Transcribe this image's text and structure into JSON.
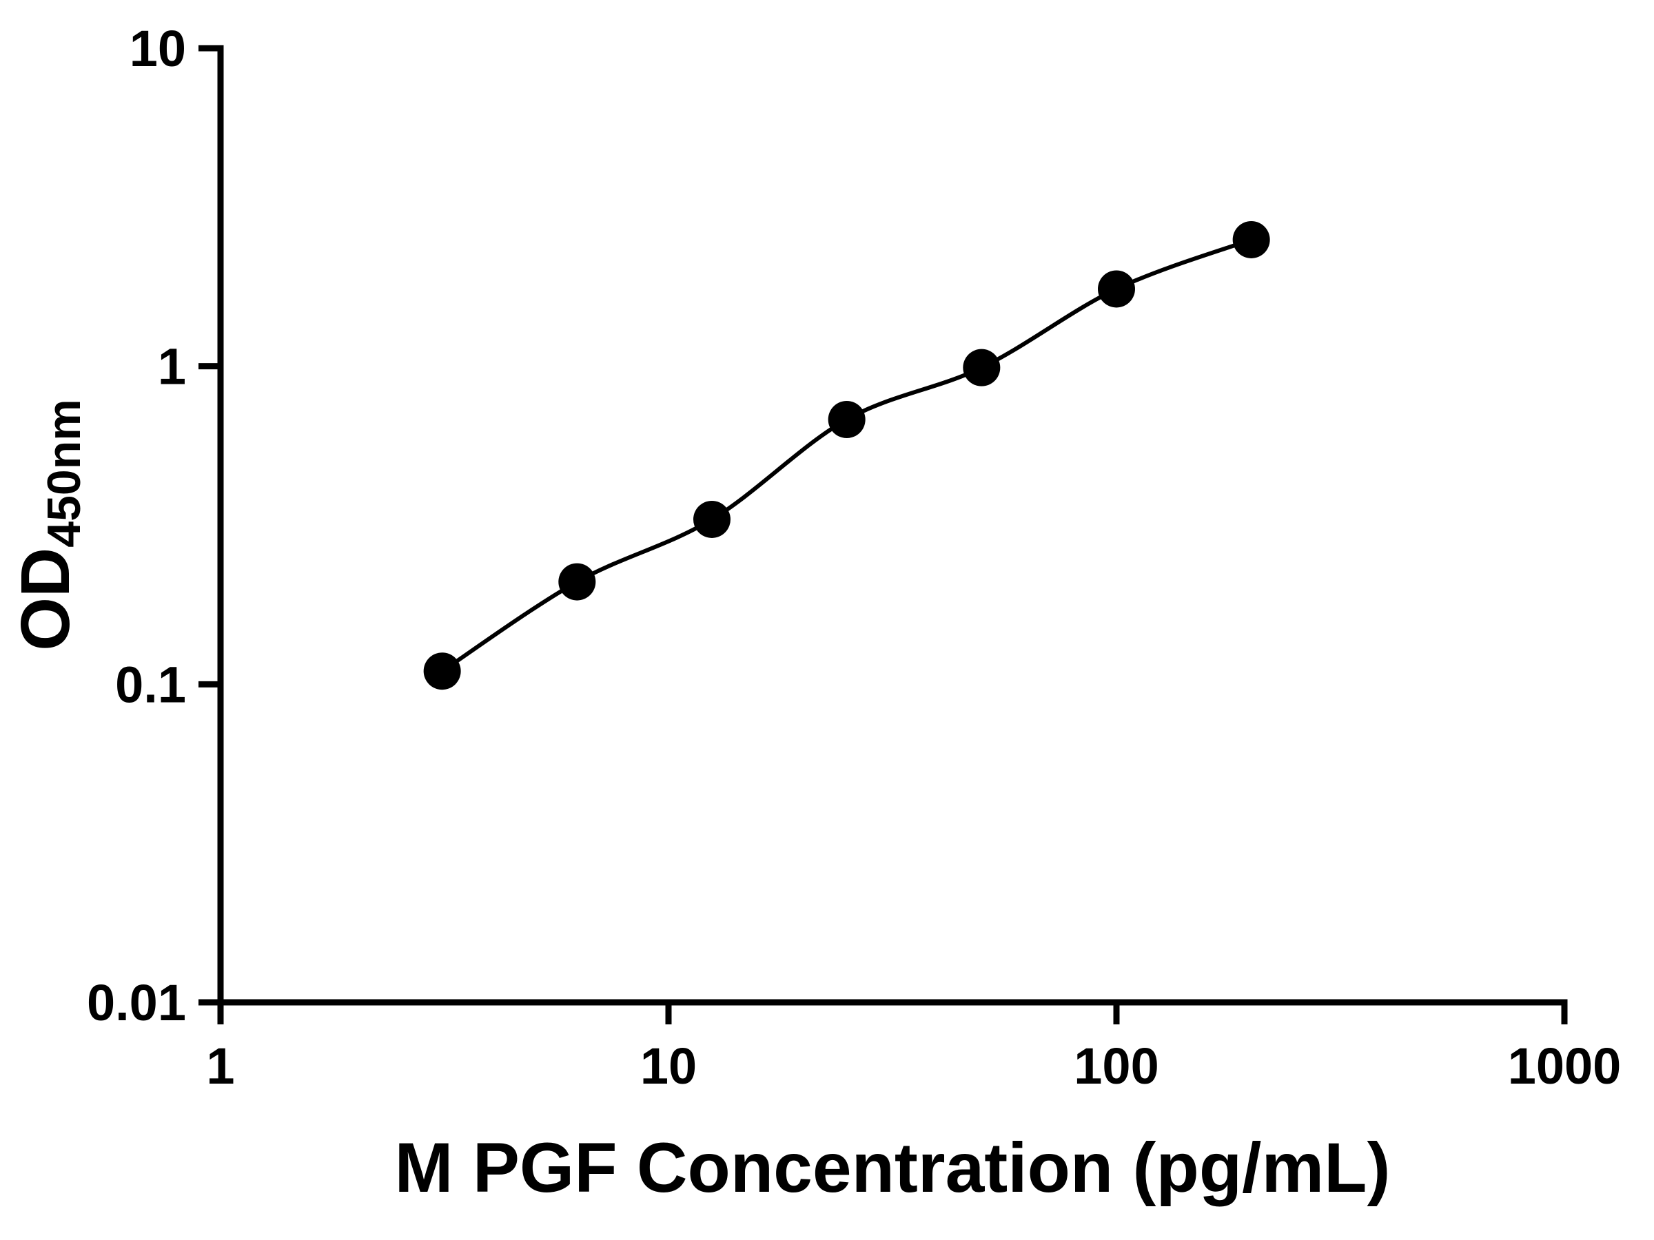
{
  "figure": {
    "background_color": "#ffffff",
    "axis_color": "#000000"
  },
  "chart_data": {
    "type": "scatter",
    "title": "",
    "xlabel": "M PGF Concentration (pg/mL)",
    "ylabel_main": "OD",
    "ylabel_sub": "450nm",
    "x_scale": "log",
    "y_scale": "log",
    "xlim": [
      1,
      1000
    ],
    "ylim": [
      0.01,
      10
    ],
    "x_ticks": [
      1,
      10,
      100,
      1000
    ],
    "x_tick_labels": [
      "1",
      "10",
      "100",
      "1000"
    ],
    "y_ticks": [
      0.01,
      0.1,
      1,
      10
    ],
    "y_tick_labels": [
      "0.01",
      "0.1",
      "1",
      "10"
    ],
    "grid": false,
    "legend_position": "none",
    "series": [
      {
        "x": [
          3.125,
          6.25,
          12.5,
          25,
          50,
          100,
          200
        ],
        "y": [
          0.11,
          0.21,
          0.33,
          0.68,
          0.99,
          1.75,
          2.5
        ],
        "marker": "circle-filled",
        "marker_color": "#000000",
        "line_color": "#000000"
      }
    ]
  }
}
